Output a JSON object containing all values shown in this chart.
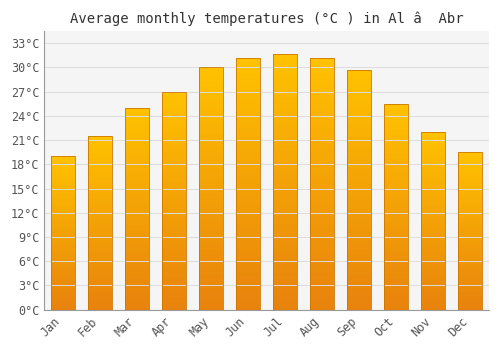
{
  "title": "Average monthly temperatures (°C ) in Al â  Abr",
  "months": [
    "Jan",
    "Feb",
    "Mar",
    "Apr",
    "May",
    "Jun",
    "Jul",
    "Aug",
    "Sep",
    "Oct",
    "Nov",
    "Dec"
  ],
  "temperatures": [
    19.0,
    21.5,
    25.0,
    27.0,
    30.0,
    31.2,
    31.7,
    31.2,
    29.7,
    25.5,
    22.0,
    19.5
  ],
  "bar_color_top": "#FFC200",
  "bar_color_bottom": "#E8820C",
  "bar_edge_color": "#CC7700",
  "background_color": "#FFFFFF",
  "plot_bg_color": "#F5F5F5",
  "grid_color": "#DDDDDD",
  "yticks": [
    0,
    3,
    6,
    9,
    12,
    15,
    18,
    21,
    24,
    27,
    30,
    33
  ],
  "ylim": [
    0,
    34.5
  ],
  "title_fontsize": 10,
  "tick_fontsize": 8.5,
  "font_family": "monospace"
}
